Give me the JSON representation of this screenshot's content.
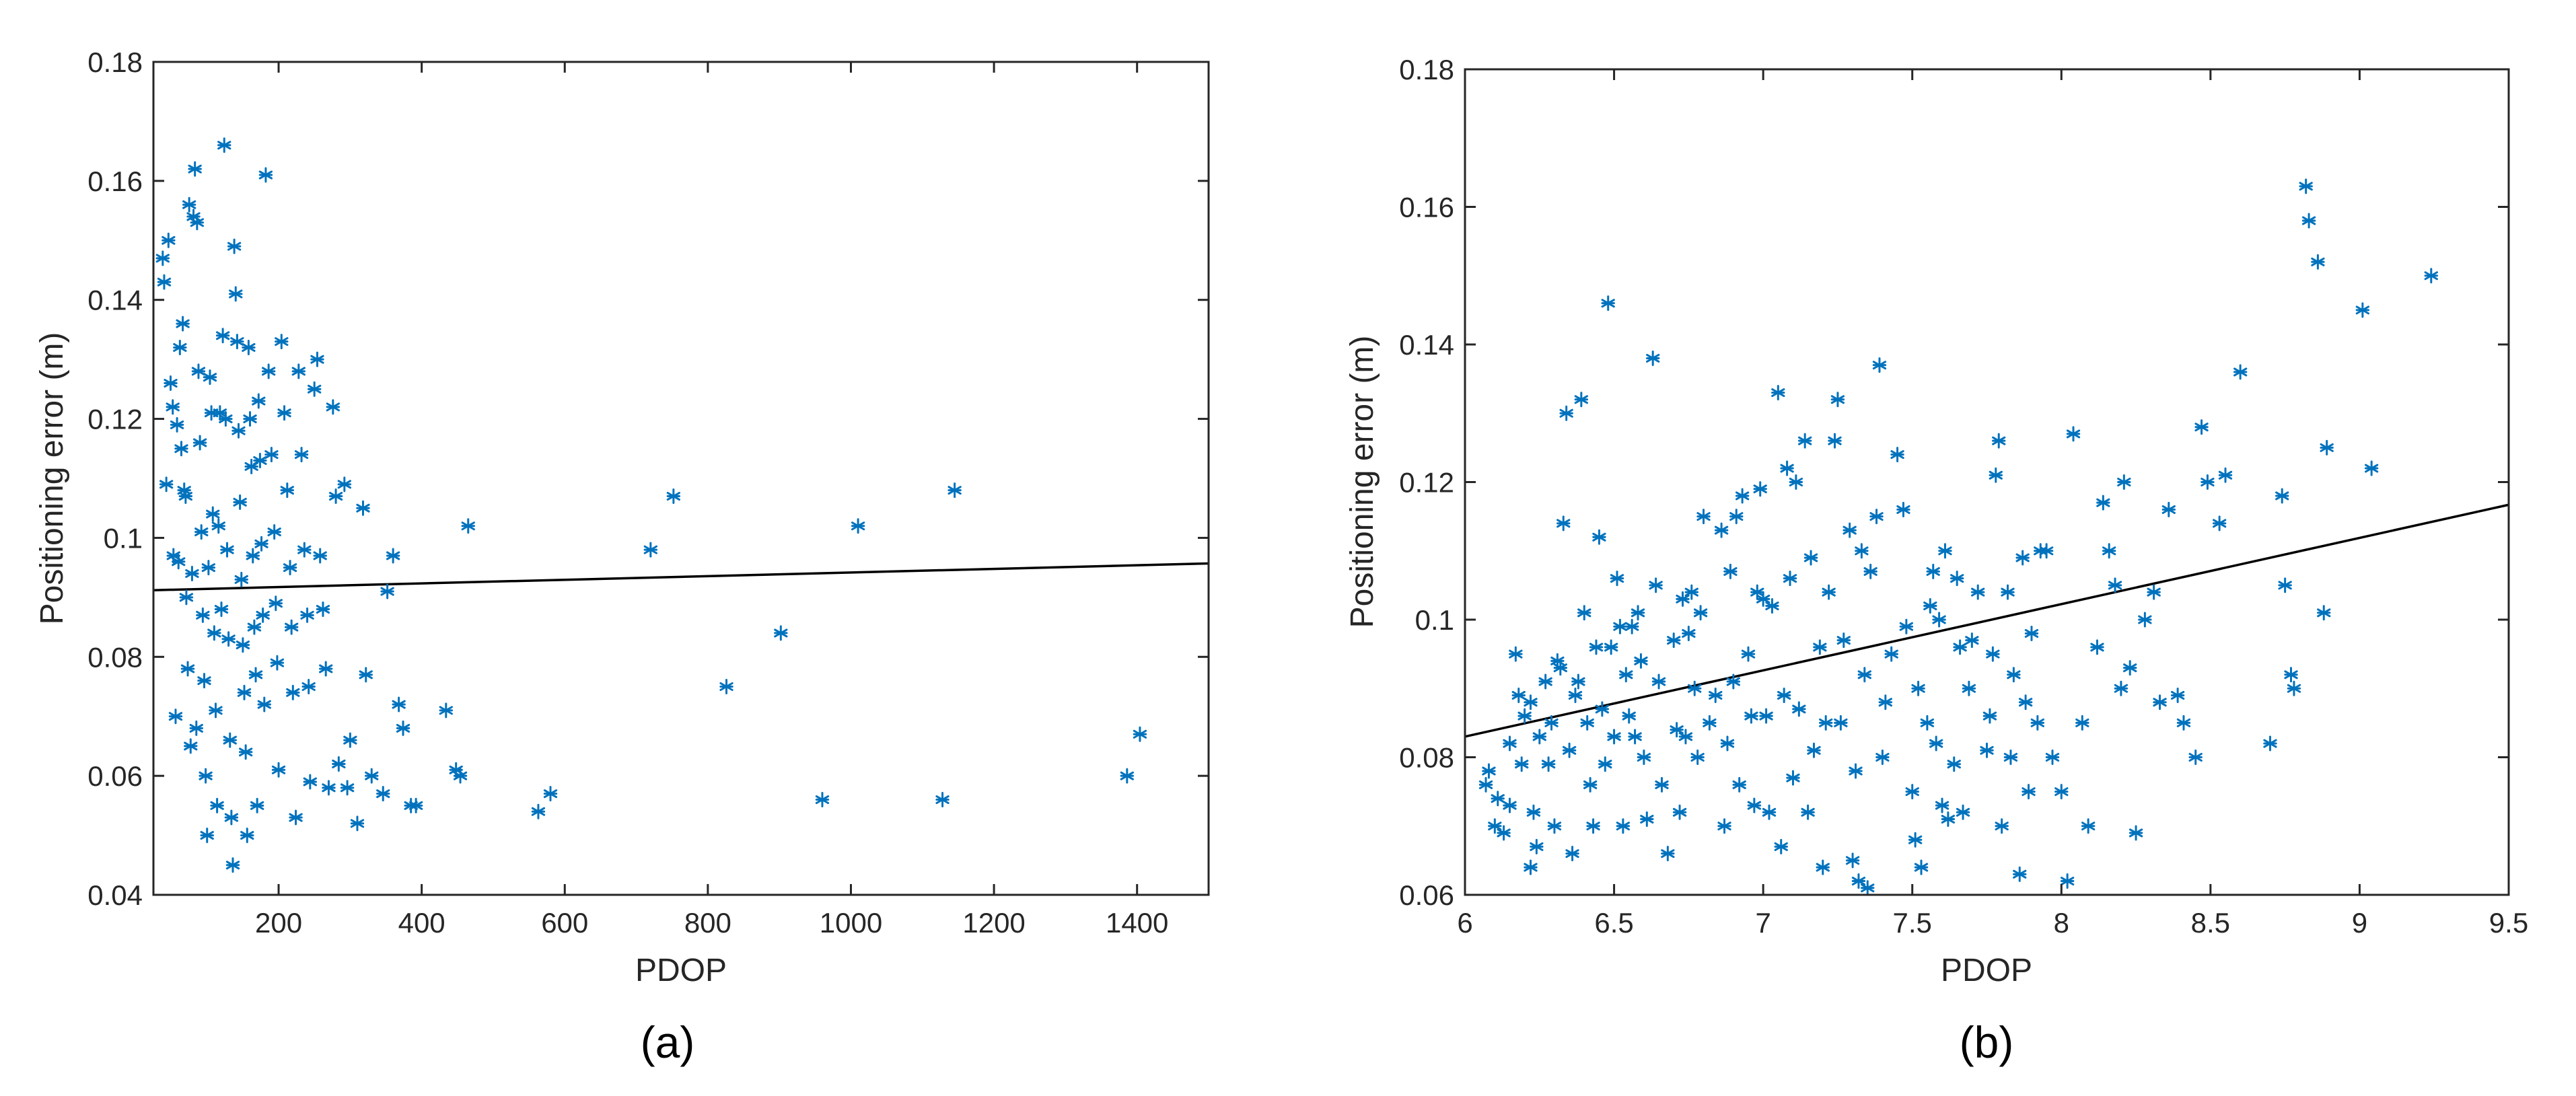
{
  "chart_data": [
    {
      "type": "scatter",
      "panel_label": "(a)",
      "xlabel": "PDOP",
      "ylabel": "Positioning error (m)",
      "xlim": [
        25,
        1500
      ],
      "ylim": [
        0.04,
        0.18
      ],
      "xticks": [
        200,
        400,
        600,
        800,
        1000,
        1200,
        1400
      ],
      "yticks": [
        0.04,
        0.06,
        0.08,
        0.1,
        0.12,
        0.14,
        0.16,
        0.18
      ],
      "xtick_labels": [
        "200",
        "400",
        "600",
        "800",
        "1000",
        "1200",
        "1400"
      ],
      "ytick_labels": [
        "0.04",
        "0.06",
        "0.08",
        "0.1",
        "0.12",
        "0.14",
        "0.16",
        "0.18"
      ],
      "grid": false,
      "marker": "asterisk",
      "marker_color": "#0072BD",
      "fit_line": {
        "x": [
          25,
          1500
        ],
        "y": [
          0.0912,
          0.0957
        ]
      },
      "points": [
        [
          38,
          0.147
        ],
        [
          40,
          0.143
        ],
        [
          43,
          0.109
        ],
        [
          46,
          0.15
        ],
        [
          49,
          0.126
        ],
        [
          52,
          0.122
        ],
        [
          53,
          0.097
        ],
        [
          56,
          0.07
        ],
        [
          58,
          0.119
        ],
        [
          60,
          0.096
        ],
        [
          62,
          0.132
        ],
        [
          64,
          0.115
        ],
        [
          66,
          0.136
        ],
        [
          68,
          0.108
        ],
        [
          70,
          0.107
        ],
        [
          71,
          0.09
        ],
        [
          73,
          0.078
        ],
        [
          75,
          0.156
        ],
        [
          77,
          0.065
        ],
        [
          79,
          0.094
        ],
        [
          81,
          0.154
        ],
        [
          83,
          0.162
        ],
        [
          85,
          0.068
        ],
        [
          86,
          0.153
        ],
        [
          88,
          0.128
        ],
        [
          90,
          0.116
        ],
        [
          92,
          0.101
        ],
        [
          94,
          0.087
        ],
        [
          96,
          0.076
        ],
        [
          98,
          0.06
        ],
        [
          100,
          0.05
        ],
        [
          102,
          0.095
        ],
        [
          104,
          0.127
        ],
        [
          106,
          0.121
        ],
        [
          108,
          0.104
        ],
        [
          110,
          0.084
        ],
        [
          112,
          0.071
        ],
        [
          114,
          0.055
        ],
        [
          116,
          0.102
        ],
        [
          118,
          0.121
        ],
        [
          120,
          0.088
        ],
        [
          122,
          0.134
        ],
        [
          124,
          0.166
        ],
        [
          126,
          0.12
        ],
        [
          128,
          0.098
        ],
        [
          130,
          0.083
        ],
        [
          132,
          0.066
        ],
        [
          134,
          0.053
        ],
        [
          136,
          0.045
        ],
        [
          138,
          0.149
        ],
        [
          140,
          0.141
        ],
        [
          142,
          0.133
        ],
        [
          144,
          0.118
        ],
        [
          146,
          0.106
        ],
        [
          148,
          0.093
        ],
        [
          150,
          0.082
        ],
        [
          152,
          0.074
        ],
        [
          154,
          0.064
        ],
        [
          156,
          0.05
        ],
        [
          158,
          0.132
        ],
        [
          160,
          0.12
        ],
        [
          162,
          0.112
        ],
        [
          164,
          0.097
        ],
        [
          166,
          0.085
        ],
        [
          168,
          0.077
        ],
        [
          170,
          0.055
        ],
        [
          172,
          0.123
        ],
        [
          174,
          0.113
        ],
        [
          176,
          0.099
        ],
        [
          178,
          0.087
        ],
        [
          180,
          0.072
        ],
        [
          182,
          0.161
        ],
        [
          186,
          0.128
        ],
        [
          190,
          0.114
        ],
        [
          194,
          0.101
        ],
        [
          196,
          0.089
        ],
        [
          198,
          0.079
        ],
        [
          200,
          0.061
        ],
        [
          204,
          0.133
        ],
        [
          208,
          0.121
        ],
        [
          212,
          0.108
        ],
        [
          216,
          0.095
        ],
        [
          218,
          0.085
        ],
        [
          220,
          0.074
        ],
        [
          224,
          0.053
        ],
        [
          228,
          0.128
        ],
        [
          232,
          0.114
        ],
        [
          236,
          0.098
        ],
        [
          240,
          0.087
        ],
        [
          242,
          0.075
        ],
        [
          244,
          0.059
        ],
        [
          250,
          0.125
        ],
        [
          254,
          0.13
        ],
        [
          258,
          0.097
        ],
        [
          262,
          0.088
        ],
        [
          266,
          0.078
        ],
        [
          270,
          0.058
        ],
        [
          276,
          0.122
        ],
        [
          280,
          0.107
        ],
        [
          284,
          0.062
        ],
        [
          292,
          0.109
        ],
        [
          296,
          0.058
        ],
        [
          300,
          0.066
        ],
        [
          310,
          0.052
        ],
        [
          318,
          0.105
        ],
        [
          322,
          0.077
        ],
        [
          330,
          0.06
        ],
        [
          346,
          0.057
        ],
        [
          352,
          0.091
        ],
        [
          360,
          0.097
        ],
        [
          368,
          0.072
        ],
        [
          374,
          0.068
        ],
        [
          385,
          0.055
        ],
        [
          392,
          0.055
        ],
        [
          434,
          0.071
        ],
        [
          448,
          0.061
        ],
        [
          454,
          0.06
        ],
        [
          465,
          0.102
        ],
        [
          563,
          0.054
        ],
        [
          580,
          0.057
        ],
        [
          720,
          0.098
        ],
        [
          752,
          0.107
        ],
        [
          826,
          0.075
        ],
        [
          902,
          0.084
        ],
        [
          960,
          0.056
        ],
        [
          1010,
          0.102
        ],
        [
          1128,
          0.056
        ],
        [
          1145,
          0.108
        ],
        [
          1386,
          0.06
        ],
        [
          1404,
          0.067
        ]
      ]
    },
    {
      "type": "scatter",
      "panel_label": "(b)",
      "xlabel": "PDOP",
      "ylabel": "Positioning error (m)",
      "xlim": [
        6,
        9.5
      ],
      "ylim": [
        0.06,
        0.18
      ],
      "xticks": [
        6,
        6.5,
        7,
        7.5,
        8,
        8.5,
        9,
        9.5
      ],
      "yticks": [
        0.06,
        0.08,
        0.1,
        0.12,
        0.14,
        0.16,
        0.18
      ],
      "xtick_labels": [
        "6",
        "6.5",
        "7",
        "7.5",
        "8",
        "8.5",
        "9",
        "9.5"
      ],
      "ytick_labels": [
        "0.06",
        "0.08",
        "0.1",
        "0.12",
        "0.14",
        "0.16",
        "0.18"
      ],
      "grid": false,
      "marker": "asterisk",
      "marker_color": "#0072BD",
      "fit_line": {
        "x": [
          6,
          9.5
        ],
        "y": [
          0.083,
          0.1167
        ]
      },
      "points": [
        [
          6.07,
          0.076
        ],
        [
          6.08,
          0.078
        ],
        [
          6.1,
          0.07
        ],
        [
          6.11,
          0.074
        ],
        [
          6.13,
          0.069
        ],
        [
          6.15,
          0.073
        ],
        [
          6.15,
          0.082
        ],
        [
          6.17,
          0.095
        ],
        [
          6.18,
          0.089
        ],
        [
          6.19,
          0.079
        ],
        [
          6.2,
          0.086
        ],
        [
          6.22,
          0.088
        ],
        [
          6.22,
          0.064
        ],
        [
          6.23,
          0.072
        ],
        [
          6.24,
          0.067
        ],
        [
          6.25,
          0.083
        ],
        [
          6.27,
          0.091
        ],
        [
          6.28,
          0.079
        ],
        [
          6.29,
          0.085
        ],
        [
          6.3,
          0.07
        ],
        [
          6.31,
          0.094
        ],
        [
          6.32,
          0.093
        ],
        [
          6.33,
          0.114
        ],
        [
          6.34,
          0.13
        ],
        [
          6.35,
          0.081
        ],
        [
          6.36,
          0.066
        ],
        [
          6.37,
          0.089
        ],
        [
          6.38,
          0.091
        ],
        [
          6.39,
          0.132
        ],
        [
          6.4,
          0.101
        ],
        [
          6.41,
          0.085
        ],
        [
          6.42,
          0.076
        ],
        [
          6.43,
          0.07
        ],
        [
          6.44,
          0.096
        ],
        [
          6.45,
          0.112
        ],
        [
          6.46,
          0.087
        ],
        [
          6.47,
          0.079
        ],
        [
          6.48,
          0.146
        ],
        [
          6.49,
          0.096
        ],
        [
          6.5,
          0.083
        ],
        [
          6.51,
          0.106
        ],
        [
          6.52,
          0.099
        ],
        [
          6.53,
          0.07
        ],
        [
          6.54,
          0.092
        ],
        [
          6.55,
          0.086
        ],
        [
          6.56,
          0.099
        ],
        [
          6.57,
          0.083
        ],
        [
          6.58,
          0.101
        ],
        [
          6.59,
          0.094
        ],
        [
          6.6,
          0.08
        ],
        [
          6.61,
          0.071
        ],
        [
          6.63,
          0.138
        ],
        [
          6.64,
          0.105
        ],
        [
          6.65,
          0.091
        ],
        [
          6.66,
          0.076
        ],
        [
          6.68,
          0.066
        ],
        [
          6.7,
          0.097
        ],
        [
          6.71,
          0.084
        ],
        [
          6.72,
          0.072
        ],
        [
          6.73,
          0.103
        ],
        [
          6.74,
          0.083
        ],
        [
          6.75,
          0.098
        ],
        [
          6.76,
          0.104
        ],
        [
          6.77,
          0.09
        ],
        [
          6.78,
          0.08
        ],
        [
          6.79,
          0.101
        ],
        [
          6.8,
          0.115
        ],
        [
          6.82,
          0.085
        ],
        [
          6.84,
          0.089
        ],
        [
          6.86,
          0.113
        ],
        [
          6.87,
          0.07
        ],
        [
          6.88,
          0.082
        ],
        [
          6.89,
          0.107
        ],
        [
          6.9,
          0.091
        ],
        [
          6.91,
          0.115
        ],
        [
          6.92,
          0.076
        ],
        [
          6.93,
          0.118
        ],
        [
          6.95,
          0.095
        ],
        [
          6.96,
          0.086
        ],
        [
          6.97,
          0.073
        ],
        [
          6.98,
          0.104
        ],
        [
          6.99,
          0.119
        ],
        [
          7.0,
          0.103
        ],
        [
          7.01,
          0.086
        ],
        [
          7.02,
          0.072
        ],
        [
          7.03,
          0.102
        ],
        [
          7.05,
          0.133
        ],
        [
          7.06,
          0.067
        ],
        [
          7.07,
          0.089
        ],
        [
          7.08,
          0.122
        ],
        [
          7.09,
          0.106
        ],
        [
          7.1,
          0.077
        ],
        [
          7.11,
          0.12
        ],
        [
          7.12,
          0.087
        ],
        [
          7.14,
          0.126
        ],
        [
          7.15,
          0.072
        ],
        [
          7.16,
          0.109
        ],
        [
          7.17,
          0.081
        ],
        [
          7.19,
          0.096
        ],
        [
          7.2,
          0.064
        ],
        [
          7.21,
          0.085
        ],
        [
          7.22,
          0.104
        ],
        [
          7.24,
          0.126
        ],
        [
          7.25,
          0.132
        ],
        [
          7.26,
          0.085
        ],
        [
          7.27,
          0.097
        ],
        [
          7.29,
          0.113
        ],
        [
          7.3,
          0.065
        ],
        [
          7.31,
          0.078
        ],
        [
          7.32,
          0.062
        ],
        [
          7.33,
          0.11
        ],
        [
          7.34,
          0.092
        ],
        [
          7.35,
          0.061
        ],
        [
          7.36,
          0.107
        ],
        [
          7.38,
          0.115
        ],
        [
          7.39,
          0.137
        ],
        [
          7.4,
          0.08
        ],
        [
          7.41,
          0.088
        ],
        [
          7.43,
          0.095
        ],
        [
          7.45,
          0.124
        ],
        [
          7.47,
          0.116
        ],
        [
          7.48,
          0.099
        ],
        [
          7.5,
          0.075
        ],
        [
          7.51,
          0.068
        ],
        [
          7.52,
          0.09
        ],
        [
          7.53,
          0.064
        ],
        [
          7.55,
          0.085
        ],
        [
          7.56,
          0.102
        ],
        [
          7.57,
          0.107
        ],
        [
          7.58,
          0.082
        ],
        [
          7.59,
          0.1
        ],
        [
          7.6,
          0.073
        ],
        [
          7.61,
          0.11
        ],
        [
          7.62,
          0.071
        ],
        [
          7.64,
          0.079
        ],
        [
          7.65,
          0.106
        ],
        [
          7.66,
          0.096
        ],
        [
          7.67,
          0.072
        ],
        [
          7.69,
          0.09
        ],
        [
          7.7,
          0.097
        ],
        [
          7.72,
          0.104
        ],
        [
          7.75,
          0.081
        ],
        [
          7.76,
          0.086
        ],
        [
          7.77,
          0.095
        ],
        [
          7.78,
          0.121
        ],
        [
          7.79,
          0.126
        ],
        [
          7.8,
          0.07
        ],
        [
          7.82,
          0.104
        ],
        [
          7.83,
          0.08
        ],
        [
          7.84,
          0.092
        ],
        [
          7.86,
          0.063
        ],
        [
          7.87,
          0.109
        ],
        [
          7.88,
          0.088
        ],
        [
          7.89,
          0.075
        ],
        [
          7.9,
          0.098
        ],
        [
          7.92,
          0.085
        ],
        [
          7.93,
          0.11
        ],
        [
          7.95,
          0.11
        ],
        [
          7.97,
          0.08
        ],
        [
          8.0,
          0.075
        ],
        [
          8.02,
          0.062
        ],
        [
          8.04,
          0.127
        ],
        [
          8.07,
          0.085
        ],
        [
          8.09,
          0.07
        ],
        [
          8.12,
          0.096
        ],
        [
          8.14,
          0.117
        ],
        [
          8.16,
          0.11
        ],
        [
          8.18,
          0.105
        ],
        [
          8.2,
          0.09
        ],
        [
          8.21,
          0.12
        ],
        [
          8.23,
          0.093
        ],
        [
          8.25,
          0.069
        ],
        [
          8.28,
          0.1
        ],
        [
          8.31,
          0.104
        ],
        [
          8.33,
          0.088
        ],
        [
          8.36,
          0.116
        ],
        [
          8.39,
          0.089
        ],
        [
          8.41,
          0.085
        ],
        [
          8.45,
          0.08
        ],
        [
          8.47,
          0.128
        ],
        [
          8.49,
          0.12
        ],
        [
          8.53,
          0.114
        ],
        [
          8.55,
          0.121
        ],
        [
          8.6,
          0.136
        ],
        [
          8.7,
          0.082
        ],
        [
          8.74,
          0.118
        ],
        [
          8.75,
          0.105
        ],
        [
          8.77,
          0.092
        ],
        [
          8.78,
          0.09
        ],
        [
          8.82,
          0.163
        ],
        [
          8.83,
          0.158
        ],
        [
          8.86,
          0.152
        ],
        [
          8.88,
          0.101
        ],
        [
          8.89,
          0.125
        ],
        [
          9.01,
          0.145
        ],
        [
          9.04,
          0.122
        ],
        [
          9.24,
          0.15
        ]
      ]
    }
  ]
}
